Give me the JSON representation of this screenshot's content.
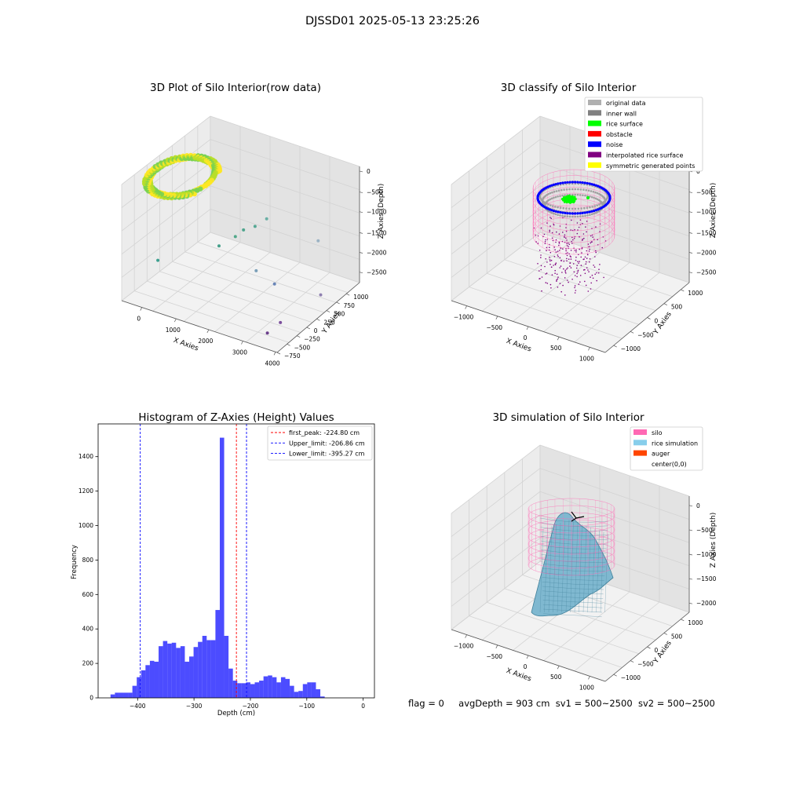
{
  "figure_title": "DJSSD01 2025-05-13 23:25:26",
  "footer": {
    "flag": "flag = 0",
    "avg_depth": "avgDepth = 903 cm",
    "sv1": "sv1 = 500~2500",
    "sv2": "sv2 = 500~2500"
  },
  "chart_data": [
    {
      "type": "scatter",
      "title": "3D Plot of Silo Interior(row data)",
      "xlabel": "X Axies",
      "ylabel": "Y Axies",
      "zlabel": "Z Axies (Depth)",
      "x_ticks": [
        "0",
        "1000",
        "2000",
        "3000",
        "4000"
      ],
      "y_ticks": [
        "−750",
        "−500",
        "−250",
        "0",
        "250",
        "500",
        "750",
        "1000"
      ],
      "z_ticks": [
        "0",
        "−500",
        "−1000",
        "−1500",
        "−2000",
        "−2500"
      ],
      "xlim": [
        -600,
        4000
      ],
      "ylim": [
        -750,
        1100
      ],
      "zlim": [
        -2700,
        100
      ],
      "colormap": "viridis",
      "surface_cluster": {
        "x_range": [
          -400,
          900
        ],
        "y_range": [
          -400,
          1100
        ],
        "z_range": [
          -300,
          0
        ],
        "colors": [
          "#fde725",
          "#b8de29",
          "#7ad151"
        ]
      },
      "outlier_points": [
        {
          "x": 400,
          "y": -700,
          "z": -1500,
          "color": "#3b9f8f"
        },
        {
          "x": 1500,
          "y": -200,
          "z": -1300,
          "color": "#45a08a"
        },
        {
          "x": 1700,
          "y": 0,
          "z": -1200,
          "color": "#52a88a"
        },
        {
          "x": 1800,
          "y": 100,
          "z": -1100,
          "color": "#4fa58d"
        },
        {
          "x": 2000,
          "y": 200,
          "z": -1050,
          "color": "#56a894"
        },
        {
          "x": 2200,
          "y": 300,
          "z": -900,
          "color": "#6ab0a5"
        },
        {
          "x": 2600,
          "y": -200,
          "z": -1600,
          "color": "#7a9fb8"
        },
        {
          "x": 3000,
          "y": -100,
          "z": -1900,
          "color": "#6a86b8"
        },
        {
          "x": 3300,
          "y": 600,
          "z": -1400,
          "color": "#9bb3c4"
        },
        {
          "x": 3800,
          "y": 300,
          "z": -2300,
          "color": "#8f80b0"
        },
        {
          "x": 3600,
          "y": -400,
          "z": -2400,
          "color": "#7b4f9c"
        },
        {
          "x": 3500,
          "y": -600,
          "z": -2500,
          "color": "#6b3f8c"
        }
      ]
    },
    {
      "type": "scatter",
      "title": "3D classify of Silo Interior",
      "xlabel": "X Axies",
      "ylabel": "Y Axies",
      "zlabel": "Z Axies (Depth)",
      "x_ticks": [
        "−1000",
        "−500",
        "0",
        "500",
        "1000"
      ],
      "y_ticks": [
        "−1000",
        "−500",
        "0",
        "500",
        "1000"
      ],
      "z_ticks": [
        "0",
        "−500",
        "−1000",
        "−1500",
        "−2000",
        "−2500"
      ],
      "xlim": [
        -1300,
        1300
      ],
      "ylim": [
        -1300,
        1300
      ],
      "zlim": [
        -2700,
        100
      ],
      "legend_position": "top-right",
      "legend": [
        {
          "label": "original data",
          "color": "#b0b0b0"
        },
        {
          "label": "inner wall",
          "color": "#808080"
        },
        {
          "label": "rice surface",
          "color": "#00ff00"
        },
        {
          "label": "obstacle",
          "color": "#ff0000"
        },
        {
          "label": "noise",
          "color": "#0000ff"
        },
        {
          "label": "interpolated rice surface",
          "color": "#800080"
        },
        {
          "label": "symmetric generated points",
          "color": "#ffff00"
        }
      ],
      "silo_wireframe_color": "#ff69b4",
      "silo_radius": 700,
      "silo_z_range": [
        -650,
        0
      ]
    },
    {
      "type": "bar",
      "title": "Histogram of Z-Axies (Height) Values",
      "xlabel": "Depth (cm)",
      "ylabel": "Frequency",
      "bar_color": "#0000ff",
      "x_ticks": [
        "−400",
        "−300",
        "−200",
        "−100",
        "0"
      ],
      "x_tick_values": [
        -400,
        -300,
        -200,
        -100,
        0
      ],
      "y_ticks": [
        "0",
        "200",
        "400",
        "600",
        "800",
        "1000",
        "1200",
        "1400"
      ],
      "y_tick_values": [
        0,
        200,
        400,
        600,
        800,
        1000,
        1200,
        1400
      ],
      "xlim": [
        -470,
        20
      ],
      "ylim": [
        0,
        1590
      ],
      "bin_start": -448,
      "bin_width": 7.75,
      "values": [
        20,
        30,
        30,
        30,
        30,
        70,
        120,
        160,
        190,
        215,
        210,
        300,
        330,
        315,
        320,
        290,
        300,
        210,
        240,
        295,
        325,
        360,
        335,
        335,
        510,
        1510,
        360,
        170,
        100,
        85,
        85,
        90,
        80,
        90,
        100,
        125,
        130,
        120,
        90,
        120,
        110,
        70,
        35,
        40,
        80,
        90,
        90,
        50,
        8
      ],
      "legend_position": "top-right",
      "reference_lines": [
        {
          "label": "first_peak: -224.80 cm",
          "value": -224.8,
          "color": "#ff0000"
        },
        {
          "label": "Upper_limit: -206.86 cm",
          "value": -206.86,
          "color": "#0000ff"
        },
        {
          "label": "Lower_limit: -395.27 cm",
          "value": -395.27,
          "color": "#0000ff"
        }
      ]
    },
    {
      "type": "area",
      "title": "3D simulation of Silo Interior",
      "xlabel": "X Axies",
      "ylabel": "Y Axies",
      "zlabel": "Z Axies (Depth)",
      "x_ticks": [
        "−1000",
        "−500",
        "0",
        "500",
        "1000"
      ],
      "y_ticks": [
        "−1000",
        "−500",
        "0",
        "500",
        "1000"
      ],
      "z_ticks": [
        "0",
        "−500",
        "−1000",
        "−1500",
        "−2000"
      ],
      "xlim": [
        -1300,
        1300
      ],
      "ylim": [
        -1300,
        1300
      ],
      "zlim": [
        -2200,
        200
      ],
      "legend_position": "top-right",
      "legend": [
        {
          "label": "silo",
          "color": "#ff69b4"
        },
        {
          "label": "rice simulation",
          "color": "#87ceeb"
        },
        {
          "label": "auger",
          "color": "#ff4500"
        },
        {
          "label": "center(0,0)",
          "color": "#ffffff"
        }
      ],
      "silo_radius": 700,
      "silo_z_range": [
        -1000,
        0
      ],
      "surface_color": "#7fb8d0",
      "peak_z": -500,
      "edge_z": -2000
    }
  ]
}
